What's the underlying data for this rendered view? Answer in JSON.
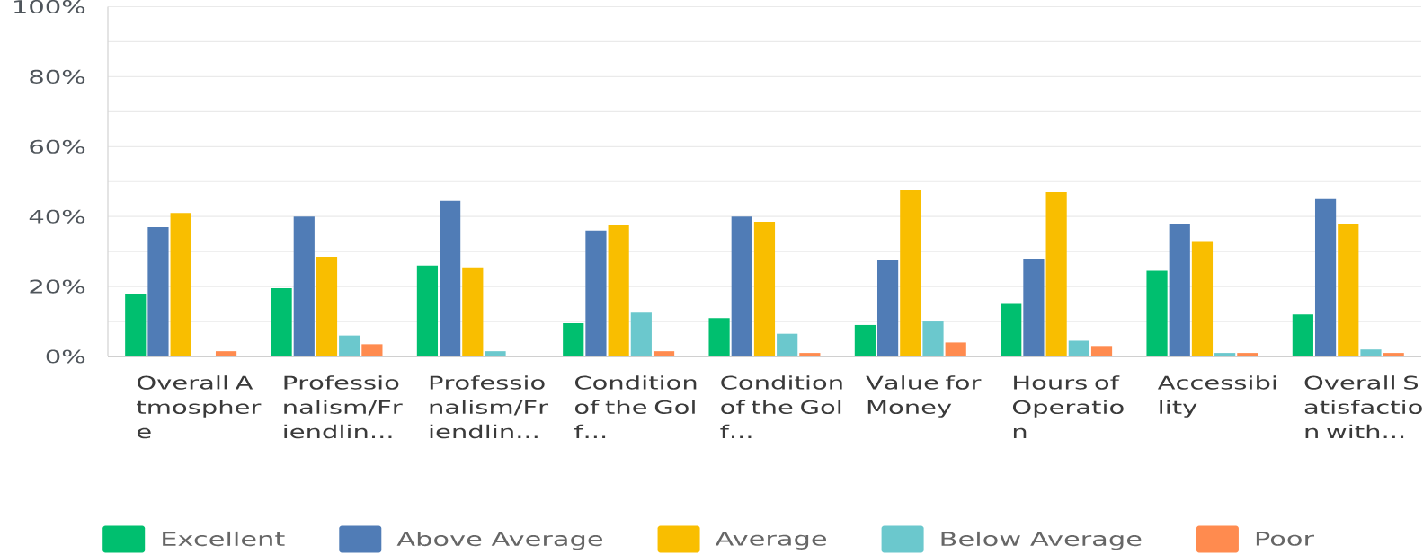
{
  "chart_data": {
    "type": "bar",
    "categories": [
      "Overall Atmosphere",
      "Professionalism/Friendlin...",
      "Professionalism/Friendlin...",
      "Condition of the Golf...",
      "Condition of the Golf...",
      "Value for Money",
      "Hours of Operation",
      "Accessibility",
      "Overall Satisfaction with..."
    ],
    "series": [
      {
        "name": "Excellent",
        "color": "#00bf6f",
        "values": [
          18,
          19.5,
          26,
          9.5,
          11,
          9,
          15,
          24.5,
          12
        ]
      },
      {
        "name": "Above Average",
        "color": "#507cb6",
        "values": [
          37,
          40,
          44.5,
          36,
          40,
          27.5,
          28,
          38,
          45
        ]
      },
      {
        "name": "Average",
        "color": "#f9be00",
        "values": [
          41,
          28.5,
          25.5,
          37.5,
          38.5,
          47.5,
          47,
          33,
          38
        ]
      },
      {
        "name": "Below Average",
        "color": "#6bc8cd",
        "values": [
          0,
          6,
          1.5,
          12.5,
          6.5,
          10,
          4.5,
          1,
          2
        ]
      },
      {
        "name": "Poor",
        "color": "#ff8b4f",
        "values": [
          1.5,
          3.5,
          0,
          1.5,
          1,
          4,
          3,
          1,
          1
        ]
      }
    ],
    "ylim": [
      0,
      100
    ],
    "yticks": [
      {
        "value": 0,
        "label": "0%"
      },
      {
        "value": 10,
        "label": null
      },
      {
        "value": 20,
        "label": "20%"
      },
      {
        "value": 30,
        "label": null
      },
      {
        "value": 40,
        "label": "40%"
      },
      {
        "value": 50,
        "label": null
      },
      {
        "value": 60,
        "label": "60%"
      },
      {
        "value": 70,
        "label": null
      },
      {
        "value": 80,
        "label": "80%"
      },
      {
        "value": 90,
        "label": null
      },
      {
        "value": 100,
        "label": "100%"
      }
    ],
    "grid": "y",
    "legend": "bottom"
  }
}
